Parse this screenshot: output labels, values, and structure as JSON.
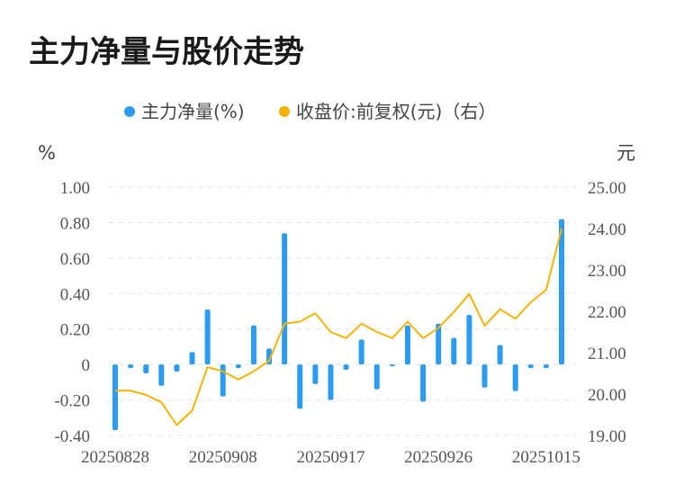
{
  "title": "主力净量与股价走势",
  "chart_data": {
    "type": "bar+line",
    "legend": [
      {
        "name": "主力净量(%)",
        "color": "#2b9cf2"
      },
      {
        "name": "收盘价:前复权(元)（右）",
        "color": "#f5b400"
      }
    ],
    "left_unit": "%",
    "right_unit": "元",
    "left_ticks": [
      "1.00",
      "0.80",
      "0.60",
      "0.40",
      "0.20",
      "0",
      "-0.20",
      "-0.40"
    ],
    "right_ticks": [
      "25.00",
      "24.00",
      "23.00",
      "22.00",
      "21.00",
      "20.00",
      "19.00"
    ],
    "left_range": [
      -0.4,
      1.0
    ],
    "right_range": [
      19.0,
      25.0
    ],
    "x_tick_labels": [
      {
        "label": "20250828",
        "index": 0
      },
      {
        "label": "20250908",
        "index": 7
      },
      {
        "label": "20250917",
        "index": 14
      },
      {
        "label": "20250926",
        "index": 21
      },
      {
        "label": "20251015",
        "index": 28
      }
    ],
    "bar_values": [
      -0.37,
      -0.02,
      -0.05,
      -0.12,
      -0.04,
      0.07,
      0.31,
      -0.18,
      -0.02,
      0.22,
      0.09,
      0.74,
      -0.25,
      -0.11,
      -0.2,
      -0.03,
      0.14,
      -0.14,
      -0.01,
      0.22,
      -0.21,
      0.23,
      0.15,
      0.28,
      -0.13,
      0.11,
      -0.15,
      -0.02,
      -0.02,
      0.82
    ],
    "line_values": [
      20.08,
      20.08,
      19.98,
      19.8,
      19.25,
      19.6,
      20.65,
      20.55,
      20.35,
      20.55,
      20.8,
      21.7,
      21.75,
      21.95,
      21.5,
      21.35,
      21.7,
      21.5,
      21.35,
      21.75,
      21.35,
      21.6,
      21.98,
      22.42,
      21.65,
      22.05,
      21.82,
      22.22,
      22.52,
      24.0
    ],
    "grid": true
  }
}
